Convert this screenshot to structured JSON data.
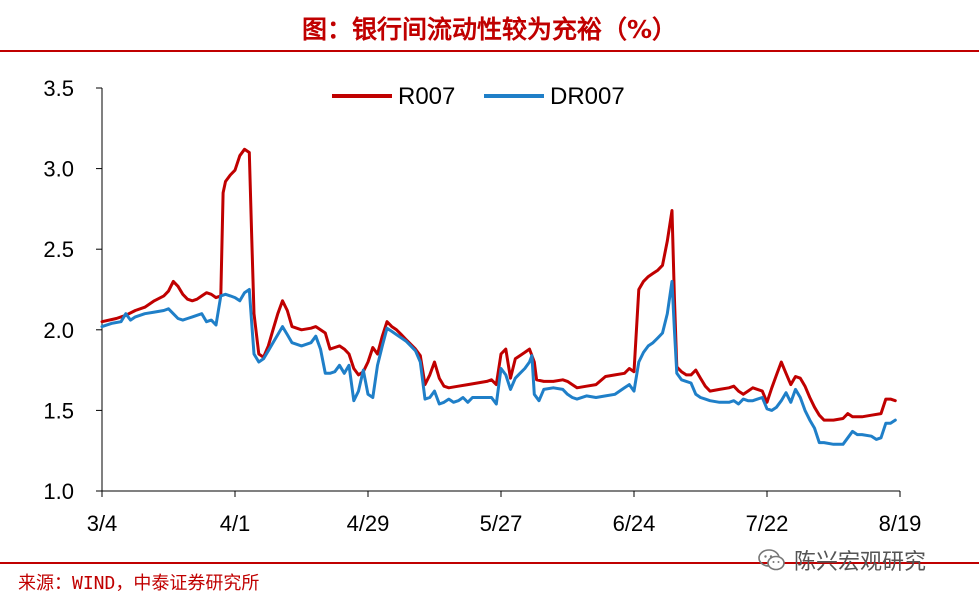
{
  "header": {
    "title": "图：银行间流动性较为充裕（%）"
  },
  "footer": {
    "source": "来源：WIND，中泰证券研究所",
    "watermark": "陈兴宏观研究",
    "watermark_icon": "wechat-icon"
  },
  "colors": {
    "accent": "#c00000",
    "r007": "#c00000",
    "dr007": "#1f7fc8"
  },
  "chart_data": {
    "type": "line",
    "title": "图：银行间流动性较为充裕（%）",
    "xlabel": "",
    "ylabel": "",
    "ylim": [
      1.0,
      3.5
    ],
    "yticks": [
      1.0,
      1.5,
      2.0,
      2.5,
      3.0,
      3.5
    ],
    "ytick_labels": [
      "1.0",
      "1.5",
      "2.0",
      "2.5",
      "3.0",
      "3.5"
    ],
    "xlim": [
      0,
      168
    ],
    "xticks": [
      {
        "x": 0,
        "label": "3/4"
      },
      {
        "x": 28,
        "label": "4/1"
      },
      {
        "x": 56,
        "label": "4/29"
      },
      {
        "x": 84,
        "label": "5/27"
      },
      {
        "x": 112,
        "label": "6/24"
      },
      {
        "x": 140,
        "label": "7/22"
      },
      {
        "x": 168,
        "label": "8/19"
      }
    ],
    "grid": false,
    "legend": "top-center",
    "series": [
      {
        "name": "R007",
        "color": "#c00000",
        "points": [
          [
            0,
            2.05
          ],
          [
            3,
            2.07
          ],
          [
            5,
            2.09
          ],
          [
            7,
            2.12
          ],
          [
            9,
            2.14
          ],
          [
            11,
            2.18
          ],
          [
            13,
            2.21
          ],
          [
            14,
            2.24
          ],
          [
            15,
            2.3
          ],
          [
            16,
            2.27
          ],
          [
            17,
            2.22
          ],
          [
            18,
            2.19
          ],
          [
            19,
            2.18
          ],
          [
            20,
            2.19
          ],
          [
            21,
            2.21
          ],
          [
            22,
            2.23
          ],
          [
            23,
            2.22
          ],
          [
            24,
            2.2
          ],
          [
            25,
            2.21
          ],
          [
            25.5,
            2.85
          ],
          [
            26,
            2.92
          ],
          [
            27,
            2.96
          ],
          [
            28,
            2.99
          ],
          [
            29,
            3.08
          ],
          [
            30,
            3.12
          ],
          [
            31,
            3.1
          ],
          [
            31.5,
            2.6
          ],
          [
            32,
            2.1
          ],
          [
            33,
            1.85
          ],
          [
            34,
            1.83
          ],
          [
            35,
            1.9
          ],
          [
            36,
            2.0
          ],
          [
            37,
            2.1
          ],
          [
            38,
            2.18
          ],
          [
            39,
            2.12
          ],
          [
            40,
            2.02
          ],
          [
            42,
            2.0
          ],
          [
            44,
            2.01
          ],
          [
            45,
            2.02
          ],
          [
            46,
            2.0
          ],
          [
            47,
            1.98
          ],
          [
            48,
            1.88
          ],
          [
            49,
            1.89
          ],
          [
            50,
            1.9
          ],
          [
            51,
            1.88
          ],
          [
            52,
            1.85
          ],
          [
            53,
            1.76
          ],
          [
            54,
            1.72
          ],
          [
            55,
            1.74
          ],
          [
            56,
            1.8
          ],
          [
            57,
            1.89
          ],
          [
            58,
            1.85
          ],
          [
            59,
            1.96
          ],
          [
            60,
            2.05
          ],
          [
            61,
            2.02
          ],
          [
            62,
            2.0
          ],
          [
            63,
            1.97
          ],
          [
            64,
            1.94
          ],
          [
            65,
            1.91
          ],
          [
            66,
            1.88
          ],
          [
            67,
            1.84
          ],
          [
            68,
            1.66
          ],
          [
            69,
            1.72
          ],
          [
            70,
            1.8
          ],
          [
            71,
            1.7
          ],
          [
            72,
            1.65
          ],
          [
            73,
            1.64
          ],
          [
            75,
            1.65
          ],
          [
            77,
            1.66
          ],
          [
            79,
            1.67
          ],
          [
            81,
            1.68
          ],
          [
            82,
            1.69
          ],
          [
            83,
            1.66
          ],
          [
            84,
            1.85
          ],
          [
            85,
            1.88
          ],
          [
            86,
            1.7
          ],
          [
            87,
            1.82
          ],
          [
            88,
            1.84
          ],
          [
            89,
            1.86
          ],
          [
            90,
            1.88
          ],
          [
            91,
            1.8
          ],
          [
            91.5,
            1.69
          ],
          [
            93,
            1.68
          ],
          [
            95,
            1.68
          ],
          [
            97,
            1.69
          ],
          [
            98,
            1.68
          ],
          [
            99,
            1.66
          ],
          [
            100,
            1.64
          ],
          [
            102,
            1.65
          ],
          [
            104,
            1.66
          ],
          [
            106,
            1.71
          ],
          [
            108,
            1.72
          ],
          [
            110,
            1.73
          ],
          [
            111,
            1.76
          ],
          [
            112,
            1.74
          ],
          [
            113,
            2.25
          ],
          [
            114,
            2.3
          ],
          [
            115,
            2.33
          ],
          [
            116,
            2.35
          ],
          [
            117,
            2.37
          ],
          [
            118,
            2.4
          ],
          [
            119,
            2.55
          ],
          [
            120,
            2.74
          ],
          [
            120.5,
            2.2
          ],
          [
            121,
            1.77
          ],
          [
            122,
            1.74
          ],
          [
            123,
            1.72
          ],
          [
            124,
            1.72
          ],
          [
            125,
            1.75
          ],
          [
            126,
            1.7
          ],
          [
            127,
            1.65
          ],
          [
            128,
            1.62
          ],
          [
            130,
            1.63
          ],
          [
            132,
            1.64
          ],
          [
            133,
            1.65
          ],
          [
            134,
            1.62
          ],
          [
            135,
            1.6
          ],
          [
            136,
            1.62
          ],
          [
            137,
            1.64
          ],
          [
            138,
            1.63
          ],
          [
            139,
            1.62
          ],
          [
            140,
            1.55
          ],
          [
            141,
            1.64
          ],
          [
            142,
            1.72
          ],
          [
            143,
            1.8
          ],
          [
            144,
            1.73
          ],
          [
            145,
            1.66
          ],
          [
            146,
            1.71
          ],
          [
            147,
            1.7
          ],
          [
            148,
            1.65
          ],
          [
            149,
            1.58
          ],
          [
            150,
            1.52
          ],
          [
            151,
            1.47
          ],
          [
            152,
            1.44
          ],
          [
            154,
            1.44
          ],
          [
            156,
            1.45
          ],
          [
            157,
            1.48
          ],
          [
            158,
            1.46
          ],
          [
            160,
            1.46
          ],
          [
            162,
            1.47
          ],
          [
            164,
            1.48
          ],
          [
            165,
            1.57
          ],
          [
            166,
            1.57
          ],
          [
            167,
            1.56
          ]
        ]
      },
      {
        "name": "DR007",
        "color": "#1f7fc8",
        "points": [
          [
            0,
            2.02
          ],
          [
            2,
            2.04
          ],
          [
            4,
            2.05
          ],
          [
            5,
            2.1
          ],
          [
            6,
            2.06
          ],
          [
            7,
            2.08
          ],
          [
            9,
            2.1
          ],
          [
            11,
            2.11
          ],
          [
            13,
            2.12
          ],
          [
            14,
            2.13
          ],
          [
            15,
            2.1
          ],
          [
            16,
            2.07
          ],
          [
            17,
            2.06
          ],
          [
            18,
            2.07
          ],
          [
            19,
            2.08
          ],
          [
            20,
            2.09
          ],
          [
            21,
            2.1
          ],
          [
            22,
            2.05
          ],
          [
            23,
            2.06
          ],
          [
            24,
            2.03
          ],
          [
            25,
            2.21
          ],
          [
            26,
            2.22
          ],
          [
            27,
            2.21
          ],
          [
            28,
            2.2
          ],
          [
            29,
            2.18
          ],
          [
            30,
            2.23
          ],
          [
            31,
            2.25
          ],
          [
            31.5,
            2.05
          ],
          [
            32,
            1.85
          ],
          [
            33,
            1.8
          ],
          [
            34,
            1.82
          ],
          [
            35,
            1.87
          ],
          [
            36,
            1.92
          ],
          [
            37,
            1.97
          ],
          [
            38,
            2.02
          ],
          [
            39,
            1.97
          ],
          [
            40,
            1.92
          ],
          [
            42,
            1.9
          ],
          [
            44,
            1.92
          ],
          [
            45,
            1.96
          ],
          [
            46,
            1.88
          ],
          [
            47,
            1.73
          ],
          [
            48,
            1.73
          ],
          [
            49,
            1.74
          ],
          [
            50,
            1.78
          ],
          [
            51,
            1.73
          ],
          [
            52,
            1.78
          ],
          [
            53,
            1.56
          ],
          [
            54,
            1.62
          ],
          [
            55,
            1.75
          ],
          [
            56,
            1.6
          ],
          [
            57,
            1.58
          ],
          [
            58,
            1.78
          ],
          [
            59,
            1.9
          ],
          [
            60,
            2.01
          ],
          [
            61,
            1.99
          ],
          [
            62,
            1.97
          ],
          [
            63,
            1.95
          ],
          [
            64,
            1.93
          ],
          [
            65,
            1.9
          ],
          [
            66,
            1.87
          ],
          [
            67,
            1.8
          ],
          [
            68,
            1.57
          ],
          [
            69,
            1.58
          ],
          [
            70,
            1.62
          ],
          [
            71,
            1.54
          ],
          [
            72,
            1.55
          ],
          [
            73,
            1.57
          ],
          [
            74,
            1.55
          ],
          [
            75,
            1.56
          ],
          [
            76,
            1.58
          ],
          [
            77,
            1.55
          ],
          [
            78,
            1.58
          ],
          [
            80,
            1.58
          ],
          [
            82,
            1.58
          ],
          [
            83,
            1.54
          ],
          [
            84,
            1.76
          ],
          [
            85,
            1.72
          ],
          [
            86,
            1.63
          ],
          [
            87,
            1.7
          ],
          [
            88,
            1.73
          ],
          [
            89,
            1.76
          ],
          [
            90,
            1.8
          ],
          [
            90.5,
            1.84
          ],
          [
            91,
            1.6
          ],
          [
            92,
            1.56
          ],
          [
            93,
            1.63
          ],
          [
            95,
            1.64
          ],
          [
            97,
            1.63
          ],
          [
            98,
            1.6
          ],
          [
            99,
            1.58
          ],
          [
            100,
            1.57
          ],
          [
            102,
            1.59
          ],
          [
            104,
            1.58
          ],
          [
            106,
            1.59
          ],
          [
            108,
            1.6
          ],
          [
            110,
            1.64
          ],
          [
            111,
            1.66
          ],
          [
            112,
            1.62
          ],
          [
            113,
            1.8
          ],
          [
            114,
            1.86
          ],
          [
            115,
            1.9
          ],
          [
            116,
            1.92
          ],
          [
            117,
            1.95
          ],
          [
            118,
            1.98
          ],
          [
            119,
            2.1
          ],
          [
            120,
            2.3
          ],
          [
            120.5,
            2.0
          ],
          [
            121,
            1.73
          ],
          [
            122,
            1.69
          ],
          [
            123,
            1.68
          ],
          [
            124,
            1.67
          ],
          [
            125,
            1.6
          ],
          [
            126,
            1.58
          ],
          [
            127,
            1.57
          ],
          [
            128,
            1.56
          ],
          [
            130,
            1.55
          ],
          [
            132,
            1.55
          ],
          [
            133,
            1.56
          ],
          [
            134,
            1.54
          ],
          [
            135,
            1.57
          ],
          [
            136,
            1.56
          ],
          [
            137,
            1.56
          ],
          [
            138,
            1.57
          ],
          [
            139,
            1.58
          ],
          [
            140,
            1.51
          ],
          [
            141,
            1.5
          ],
          [
            142,
            1.52
          ],
          [
            143,
            1.56
          ],
          [
            144,
            1.61
          ],
          [
            145,
            1.55
          ],
          [
            146,
            1.63
          ],
          [
            147,
            1.58
          ],
          [
            148,
            1.5
          ],
          [
            149,
            1.44
          ],
          [
            150,
            1.39
          ],
          [
            151,
            1.3
          ],
          [
            152,
            1.3
          ],
          [
            154,
            1.29
          ],
          [
            156,
            1.29
          ],
          [
            157,
            1.33
          ],
          [
            158,
            1.37
          ],
          [
            159,
            1.35
          ],
          [
            160,
            1.35
          ],
          [
            162,
            1.34
          ],
          [
            163,
            1.32
          ],
          [
            164,
            1.33
          ],
          [
            165,
            1.42
          ],
          [
            166,
            1.42
          ],
          [
            167,
            1.44
          ]
        ]
      }
    ]
  }
}
